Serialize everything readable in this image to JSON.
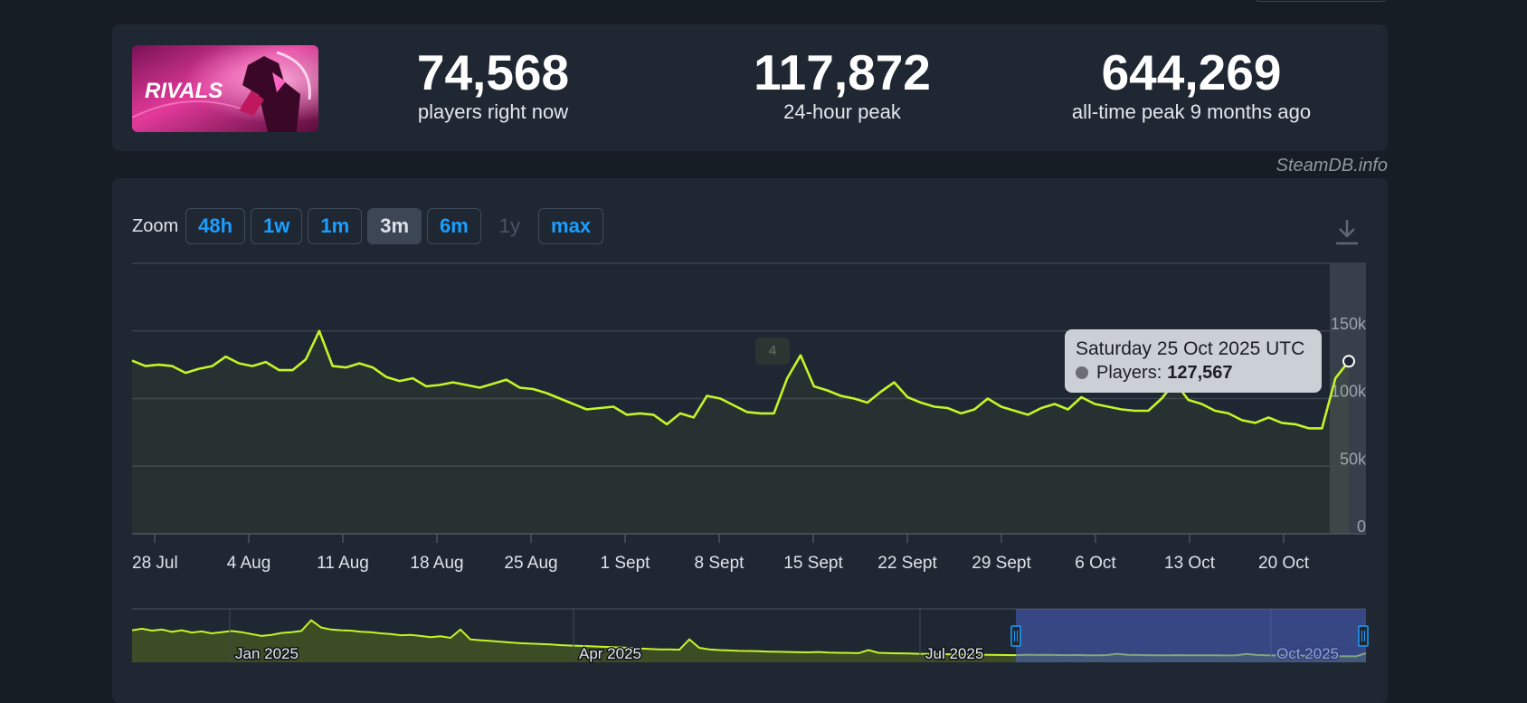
{
  "stats": [
    {
      "value": "74,568",
      "label": "players right now"
    },
    {
      "value": "117,872",
      "label": "24-hour peak"
    },
    {
      "value": "644,269",
      "label": "all-time peak 9 months ago"
    }
  ],
  "game_image_text": "RIVALS",
  "credit": "SteamDB.info",
  "zoom": {
    "label": "Zoom",
    "buttons": [
      "48h",
      "1w",
      "1m",
      "3m",
      "6m",
      "1y",
      "max"
    ],
    "active": "3m",
    "disabled": "1y"
  },
  "tooltip": {
    "date": "Saturday 25 Oct 2025 UTC",
    "series": "Players:",
    "value": "127,567"
  },
  "annotation": "4",
  "colors": {
    "line": "#c3f527",
    "accent": "#1a9fff",
    "background": "#171d25",
    "panel": "#1f2733"
  },
  "chart_data": {
    "type": "line",
    "ylim": [
      0,
      200000
    ],
    "yticks": [
      0,
      50000,
      100000,
      150000
    ],
    "ytick_labels": [
      "0",
      "50k",
      "100k",
      "150k"
    ],
    "xtick_labels": [
      "28 Jul",
      "4 Aug",
      "11 Aug",
      "18 Aug",
      "25 Aug",
      "1 Sept",
      "8 Sept",
      "15 Sept",
      "22 Sept",
      "29 Sept",
      "6 Oct",
      "13 Oct",
      "20 Oct"
    ],
    "grid": true,
    "series": [
      {
        "values": [
          128000,
          124000,
          125000,
          124000,
          119000,
          122000,
          124000,
          131000,
          126000,
          124000,
          127000,
          121000,
          121000,
          129000,
          150000,
          124000,
          123000,
          126000,
          123000,
          116000,
          113000,
          115000,
          109000,
          110000,
          112000,
          110000,
          108000,
          111000,
          114000,
          108000,
          107000,
          104000,
          100000,
          96000,
          92000,
          93000,
          94000,
          88000,
          89000,
          88000,
          81000,
          89000,
          86000,
          102000,
          100000,
          95000,
          90000,
          89000,
          89000,
          115000,
          132000,
          109000,
          106000,
          102000,
          100000,
          97000,
          105000,
          112000,
          101000,
          97000,
          94000,
          93000,
          89000,
          92000,
          100000,
          94000,
          91000,
          88000,
          93000,
          96000,
          92000,
          101000,
          96000,
          94000,
          92000,
          91000,
          91000,
          100000,
          112000,
          99000,
          96000,
          91000,
          89000,
          84000,
          82000,
          86000,
          82000,
          81000,
          78000,
          78000,
          115000,
          127567
        ]
      }
    ],
    "navigator": {
      "xtick_labels": [
        "Jan 2025",
        "Apr 2025",
        "Jul 2025",
        "Oct 2025"
      ],
      "values": [
        420000,
        440000,
        415000,
        430000,
        400000,
        420000,
        390000,
        405000,
        380000,
        395000,
        410000,
        395000,
        370000,
        345000,
        360000,
        385000,
        395000,
        410000,
        550000,
        455000,
        430000,
        420000,
        415000,
        400000,
        395000,
        380000,
        370000,
        355000,
        360000,
        345000,
        330000,
        340000,
        320000,
        430000,
        300000,
        290000,
        280000,
        270000,
        260000,
        250000,
        245000,
        240000,
        235000,
        225000,
        220000,
        215000,
        210000,
        205000,
        200000,
        195000,
        190000,
        180000,
        175000,
        170000,
        168000,
        165000,
        300000,
        190000,
        170000,
        160000,
        155000,
        150000,
        148000,
        145000,
        140000,
        138000,
        135000,
        132000,
        130000,
        135000,
        128000,
        125000,
        123000,
        120000,
        160000,
        125000,
        120000,
        118000,
        115000,
        112000,
        110000,
        108000,
        106000,
        104000,
        102000,
        100000,
        98000,
        96000,
        95000,
        94000,
        100000,
        96000,
        98000,
        95000,
        94000,
        96000,
        93000,
        92000,
        95000,
        112000,
        98000,
        96000,
        94000,
        92000,
        91000,
        94000,
        92000,
        93000,
        91000,
        92000,
        90000,
        91000,
        110000,
        96000,
        92000,
        90000,
        89000,
        88000,
        86000,
        84000,
        82000,
        80000,
        78000,
        78000,
        120000
      ]
    }
  }
}
